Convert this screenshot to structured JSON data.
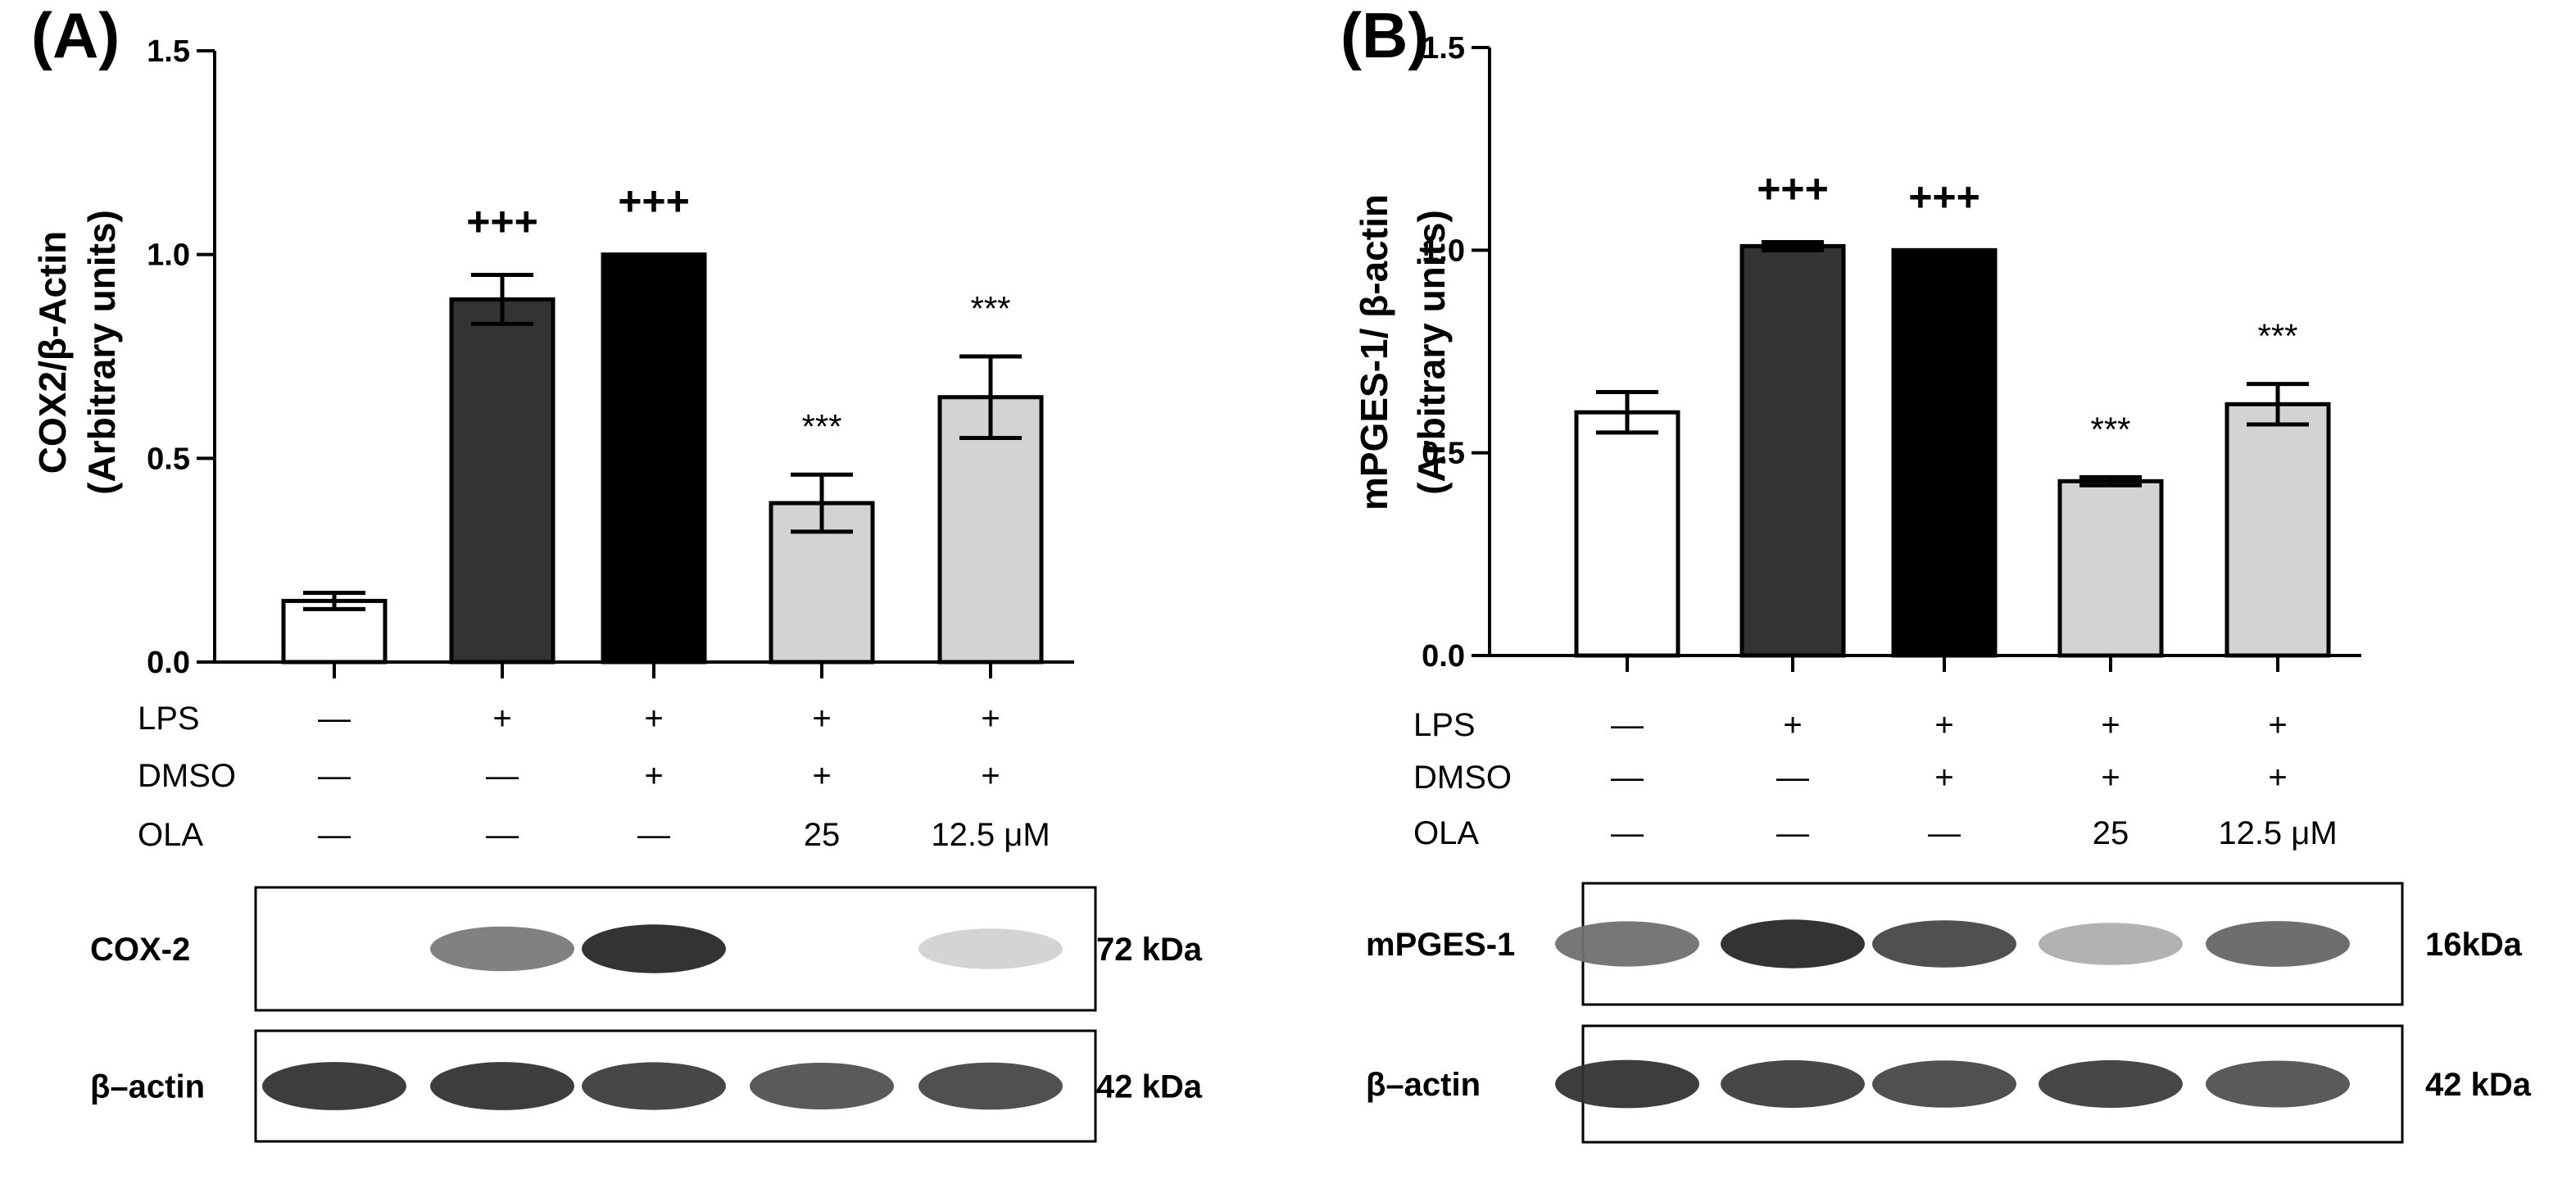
{
  "colors": {
    "bar_fills": [
      "#ffffff",
      "#333333",
      "#000000",
      "#d3d3d3",
      "#d3d3d3"
    ],
    "axis": "#000000"
  },
  "treatment_labels": [
    "LPS",
    "DMSO",
    "OLA"
  ],
  "chart_data": [
    {
      "panel": "(A)",
      "type": "bar",
      "ylabel": "COX2/β-Actin (Arbitrary units)",
      "ylabel_line1": "COX2/β-Actin",
      "ylabel_line2": "(Arbitrary units)",
      "ylim": [
        0,
        1.5
      ],
      "yticks": [
        "0.0",
        "0.5",
        "1.0",
        "1.5"
      ],
      "ytick_values": [
        0,
        0.5,
        1.0,
        1.5
      ],
      "values": [
        0.15,
        0.89,
        1.0,
        0.39,
        0.65
      ],
      "errors": [
        0.02,
        0.06,
        0.0,
        0.07,
        0.1
      ],
      "significance": [
        "",
        "+++",
        "+++",
        "***",
        "***"
      ],
      "treatments": {
        "LPS": [
          "—",
          "+",
          "+",
          "+",
          "+"
        ],
        "DMSO": [
          "—",
          "—",
          "+",
          "+",
          "+"
        ],
        "OLA": [
          "—",
          "—",
          "—",
          "25",
          "12.5 μM"
        ]
      },
      "blots": [
        {
          "label": "COX-2",
          "kda": "72  kDa",
          "intensity": [
            0.0,
            0.55,
            0.95,
            0.0,
            0.12
          ]
        },
        {
          "label": "β–actin",
          "kda": "42 kDa",
          "intensity": [
            0.9,
            0.9,
            0.85,
            0.75,
            0.8
          ]
        }
      ]
    },
    {
      "panel": "(B)",
      "type": "bar",
      "ylabel": "mPGES-1/ β-actin (Arbitrary units)",
      "ylabel_line1": "mPGES-1/ β-actin",
      "ylabel_line2": "(Arbitrary units)",
      "ylim": [
        0,
        1.5
      ],
      "yticks": [
        "0.0",
        "0.5",
        "1.0",
        "1.5"
      ],
      "ytick_values": [
        0,
        0.5,
        1.0,
        1.5
      ],
      "values": [
        0.6,
        1.01,
        1.0,
        0.43,
        0.62
      ],
      "errors": [
        0.05,
        0.01,
        0.0,
        0.01,
        0.05
      ],
      "significance": [
        "",
        "+++",
        "+++",
        "***",
        "***"
      ],
      "treatments": {
        "LPS": [
          "—",
          "+",
          "+",
          "+",
          "+"
        ],
        "DMSO": [
          "—",
          "—",
          "+",
          "+",
          "+"
        ],
        "OLA": [
          "—",
          "—",
          "—",
          "25",
          "12.5 μM"
        ]
      },
      "blots": [
        {
          "label": "mPGES-1",
          "kda": "16kDa",
          "intensity": [
            0.6,
            0.95,
            0.8,
            0.3,
            0.65
          ]
        },
        {
          "label": "β–actin",
          "kda": "42 kDa",
          "intensity": [
            0.9,
            0.85,
            0.8,
            0.85,
            0.75
          ]
        }
      ]
    }
  ]
}
